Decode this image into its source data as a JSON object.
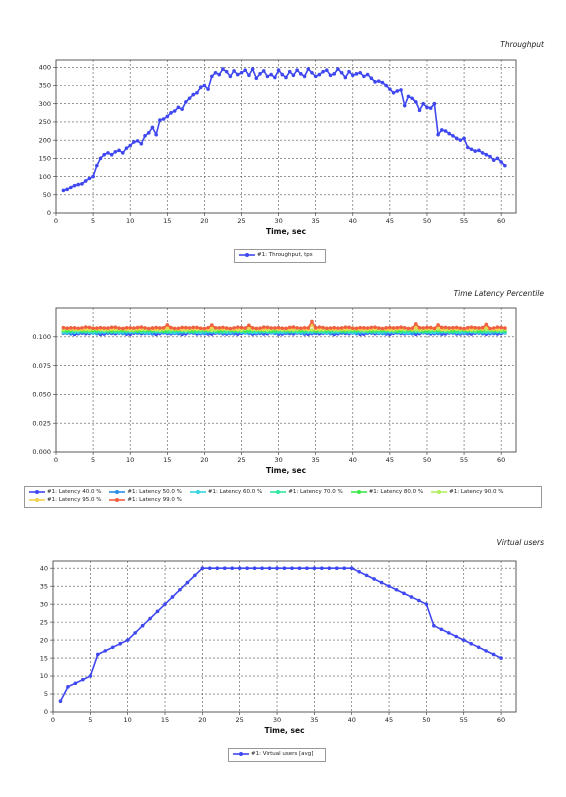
{
  "chart_data": [
    {
      "type": "line",
      "title": "Throughput",
      "xlabel": "Time, sec",
      "ylabel": "",
      "xlim": [
        0,
        62
      ],
      "ylim": [
        0,
        420
      ],
      "xticks": [
        "0",
        "5",
        "10",
        "15",
        "20",
        "25",
        "30",
        "35",
        "40",
        "45",
        "50",
        "55",
        "60"
      ],
      "yticks": [
        "0",
        "50",
        "100",
        "150",
        "200",
        "250",
        "300",
        "350",
        "400"
      ],
      "grid": true,
      "legend_position": "bottom-center",
      "series": [
        {
          "name": "#1: Throughput, tps",
          "color": "#3f48f0",
          "x": [
            1,
            1.5,
            2,
            2.5,
            3,
            3.5,
            4,
            4.5,
            5,
            5.5,
            6,
            6.5,
            7,
            7.5,
            8,
            8.5,
            9,
            9.5,
            10,
            10.5,
            11,
            11.5,
            12,
            12.5,
            13,
            13.5,
            14,
            14.5,
            15,
            15.5,
            16,
            16.5,
            17,
            17.5,
            18,
            18.5,
            19,
            19.5,
            20,
            20.5,
            21,
            21.5,
            22,
            22.5,
            23,
            23.5,
            24,
            24.5,
            25,
            25.5,
            26,
            26.5,
            27,
            27.5,
            28,
            28.5,
            29,
            29.5,
            30,
            30.5,
            31,
            31.5,
            32,
            32.5,
            33,
            33.5,
            34,
            34.5,
            35,
            35.5,
            36,
            36.5,
            37,
            37.5,
            38,
            38.5,
            39,
            39.5,
            40,
            40.5,
            41,
            41.5,
            42,
            42.5,
            43,
            43.5,
            44,
            44.5,
            45,
            45.5,
            46,
            46.5,
            47,
            47.5,
            48,
            48.5,
            49,
            49.5,
            50,
            50.5,
            51,
            51.5,
            52,
            52.5,
            53,
            53.5,
            54,
            54.5,
            55,
            55.5,
            56,
            56.5,
            57,
            57.5,
            58,
            58.5,
            59,
            59.5,
            60,
            60.5
          ],
          "y": [
            62,
            65,
            70,
            75,
            78,
            80,
            88,
            95,
            100,
            130,
            150,
            160,
            165,
            160,
            168,
            172,
            165,
            178,
            185,
            195,
            198,
            190,
            212,
            220,
            235,
            215,
            255,
            258,
            265,
            275,
            280,
            290,
            285,
            305,
            315,
            325,
            330,
            345,
            350,
            340,
            375,
            385,
            380,
            395,
            388,
            375,
            390,
            380,
            385,
            392,
            378,
            395,
            370,
            382,
            390,
            375,
            380,
            372,
            392,
            380,
            372,
            388,
            378,
            392,
            382,
            375,
            395,
            385,
            375,
            380,
            388,
            392,
            378,
            382,
            395,
            385,
            372,
            388,
            378,
            382,
            385,
            375,
            380,
            370,
            360,
            362,
            358,
            350,
            340,
            330,
            335,
            338,
            295,
            320,
            315,
            305,
            282,
            300,
            290,
            288,
            300,
            215,
            228,
            225,
            218,
            212,
            205,
            200,
            205,
            180,
            175,
            170,
            172,
            165,
            160,
            155,
            145,
            150,
            140,
            130
          ]
        }
      ]
    },
    {
      "type": "line",
      "title": "Time Latency Percentile",
      "xlabel": "Time, sec",
      "ylabel": "",
      "xlim": [
        0,
        62
      ],
      "ylim": [
        0,
        0.125
      ],
      "xticks": [
        "0",
        "5",
        "10",
        "15",
        "20",
        "25",
        "30",
        "35",
        "40",
        "45",
        "50",
        "55",
        "60"
      ],
      "yticks": [
        "0.000",
        "0.025",
        "0.050",
        "0.075",
        "0.100"
      ],
      "grid": true,
      "legend_position": "bottom",
      "series": [
        {
          "name": "#1: Latency 40.0 %",
          "color": "#3f48f0",
          "base": 0.1028
        },
        {
          "name": "#1: Latency 50.0 %",
          "color": "#2a8fe8",
          "base": 0.1035
        },
        {
          "name": "#1: Latency 60.0 %",
          "color": "#34d6e0",
          "base": 0.1042
        },
        {
          "name": "#1: Latency 70.0 %",
          "color": "#2ee8a0",
          "base": 0.1049
        },
        {
          "name": "#1: Latency 80.0 %",
          "color": "#3ee84a",
          "base": 0.1056
        },
        {
          "name": "#1: Latency 90.0 %",
          "color": "#b0f060",
          "base": 0.1063
        },
        {
          "name": "#1: Latency 95.0 %",
          "color": "#f0d050",
          "base": 0.107
        },
        {
          "name": "#1: Latency 99.0 %",
          "color": "#f06040",
          "base": 0.1078
        }
      ],
      "x": [
        1,
        1.5,
        2,
        2.5,
        3,
        3.5,
        4,
        4.5,
        5,
        5.5,
        6,
        6.5,
        7,
        7.5,
        8,
        8.5,
        9,
        9.5,
        10,
        10.5,
        11,
        11.5,
        12,
        12.5,
        13,
        13.5,
        14,
        14.5,
        15,
        15.5,
        16,
        16.5,
        17,
        17.5,
        18,
        18.5,
        19,
        19.5,
        20,
        20.5,
        21,
        21.5,
        22,
        22.5,
        23,
        23.5,
        24,
        24.5,
        25,
        25.5,
        26,
        26.5,
        27,
        27.5,
        28,
        28.5,
        29,
        29.5,
        30,
        30.5,
        31,
        31.5,
        32,
        32.5,
        33,
        33.5,
        34,
        34.5,
        35,
        35.5,
        36,
        36.5,
        37,
        37.5,
        38,
        38.5,
        39,
        39.5,
        40,
        40.5,
        41,
        41.5,
        42,
        42.5,
        43,
        43.5,
        44,
        44.5,
        45,
        45.5,
        46,
        46.5,
        47,
        47.5,
        48,
        48.5,
        49,
        49.5,
        50,
        50.5,
        51,
        51.5,
        52,
        52.5,
        53,
        53.5,
        54,
        54.5,
        55,
        55.5,
        56,
        56.5,
        57,
        57.5,
        58,
        58.5,
        59,
        59.5,
        60,
        60.5
      ]
    },
    {
      "type": "line",
      "title": "Virtual users",
      "xlabel": "Time, sec",
      "ylabel": "",
      "xlim": [
        0,
        62
      ],
      "ylim": [
        0,
        42
      ],
      "xticks": [
        "0",
        "5",
        "10",
        "15",
        "20",
        "25",
        "30",
        "35",
        "40",
        "45",
        "50",
        "55",
        "60"
      ],
      "yticks": [
        "0",
        "5",
        "10",
        "15",
        "20",
        "25",
        "30",
        "35",
        "40"
      ],
      "grid": true,
      "legend_position": "bottom-center",
      "series": [
        {
          "name": "#1: Virtual users [avg]",
          "color": "#3f48f0",
          "x": [
            1,
            2,
            3,
            4,
            5,
            6,
            7,
            8,
            9,
            10,
            11,
            12,
            13,
            14,
            15,
            16,
            17,
            18,
            19,
            20,
            21,
            22,
            23,
            24,
            25,
            26,
            27,
            28,
            29,
            30,
            31,
            32,
            33,
            34,
            35,
            36,
            37,
            38,
            39,
            40,
            41,
            42,
            43,
            44,
            45,
            46,
            47,
            48,
            49,
            50,
            51,
            52,
            53,
            54,
            55,
            56,
            57,
            58,
            59,
            60
          ],
          "y": [
            3,
            7,
            8,
            9,
            10,
            16,
            17,
            18,
            19,
            20,
            22,
            24,
            26,
            28,
            30,
            32,
            34,
            36,
            38,
            40,
            40,
            40,
            40,
            40,
            40,
            40,
            40,
            40,
            40,
            40,
            40,
            40,
            40,
            40,
            40,
            40,
            40,
            40,
            40,
            40,
            39,
            38,
            37,
            36,
            35,
            34,
            33,
            32,
            31,
            30,
            24,
            23,
            22,
            21,
            20,
            19,
            18,
            17,
            16,
            15
          ]
        }
      ]
    }
  ]
}
